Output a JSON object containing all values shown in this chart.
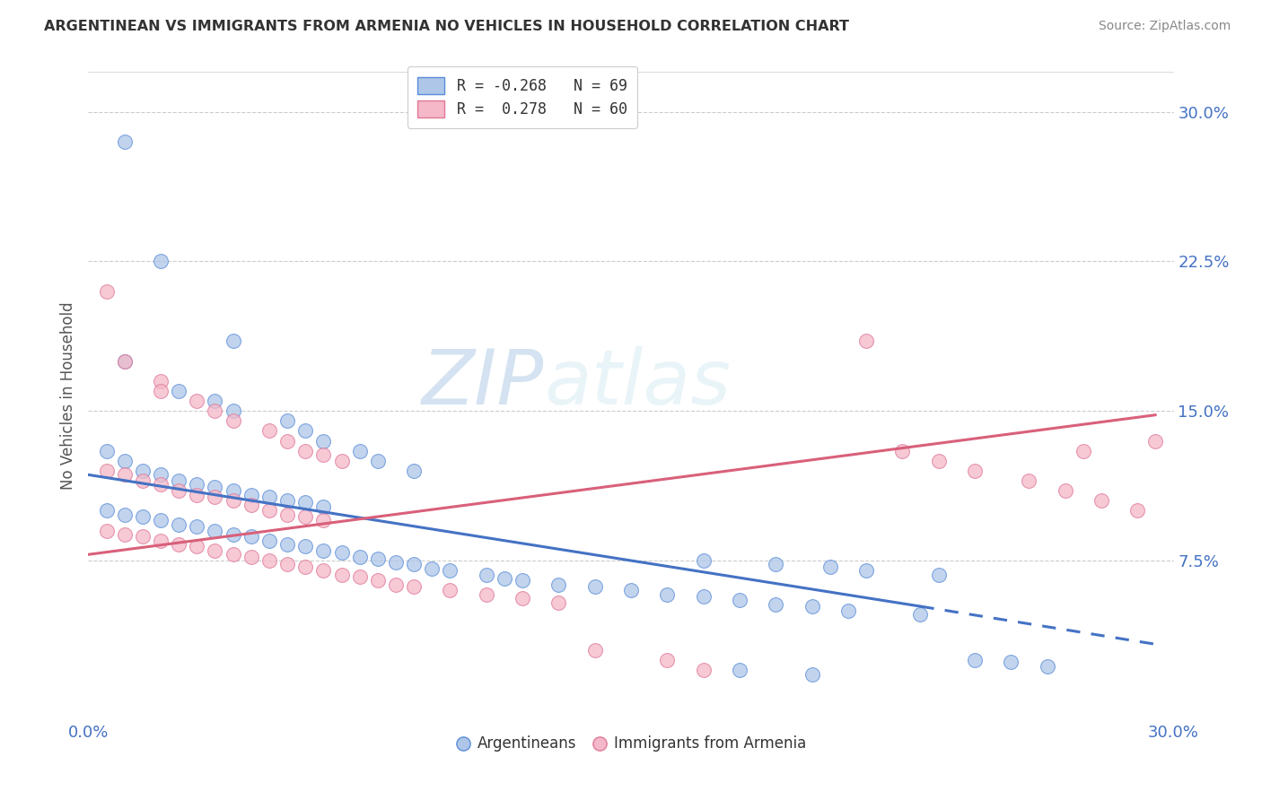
{
  "title": "ARGENTINEAN VS IMMIGRANTS FROM ARMENIA NO VEHICLES IN HOUSEHOLD CORRELATION CHART",
  "source": "Source: ZipAtlas.com",
  "ylabel_label": "No Vehicles in Household",
  "yticks": [
    0.075,
    0.15,
    0.225,
    0.3
  ],
  "ytick_labels": [
    "7.5%",
    "15.0%",
    "22.5%",
    "30.0%"
  ],
  "xlim": [
    0.0,
    0.3
  ],
  "ylim": [
    -0.005,
    0.32
  ],
  "watermark_zip": "ZIP",
  "watermark_atlas": "atlas",
  "legend_line1": "R = -0.268   N = 69",
  "legend_line2": "R =  0.278   N = 60",
  "blue_color": "#aec6e8",
  "pink_color": "#f4b8c8",
  "blue_edge_color": "#5b8dd9",
  "pink_edge_color": "#e07898",
  "blue_line_color": "#4472c4",
  "pink_line_color": "#d9607a",
  "blue_scatter": [
    [
      0.01,
      0.285
    ],
    [
      0.02,
      0.225
    ],
    [
      0.04,
      0.185
    ],
    [
      0.01,
      0.175
    ],
    [
      0.025,
      0.16
    ],
    [
      0.035,
      0.155
    ],
    [
      0.04,
      0.15
    ],
    [
      0.055,
      0.145
    ],
    [
      0.06,
      0.14
    ],
    [
      0.065,
      0.135
    ],
    [
      0.075,
      0.13
    ],
    [
      0.08,
      0.125
    ],
    [
      0.09,
      0.12
    ],
    [
      0.005,
      0.13
    ],
    [
      0.01,
      0.125
    ],
    [
      0.015,
      0.12
    ],
    [
      0.02,
      0.118
    ],
    [
      0.025,
      0.115
    ],
    [
      0.03,
      0.113
    ],
    [
      0.035,
      0.112
    ],
    [
      0.04,
      0.11
    ],
    [
      0.045,
      0.108
    ],
    [
      0.05,
      0.107
    ],
    [
      0.055,
      0.105
    ],
    [
      0.06,
      0.104
    ],
    [
      0.065,
      0.102
    ],
    [
      0.005,
      0.1
    ],
    [
      0.01,
      0.098
    ],
    [
      0.015,
      0.097
    ],
    [
      0.02,
      0.095
    ],
    [
      0.025,
      0.093
    ],
    [
      0.03,
      0.092
    ],
    [
      0.035,
      0.09
    ],
    [
      0.04,
      0.088
    ],
    [
      0.045,
      0.087
    ],
    [
      0.05,
      0.085
    ],
    [
      0.055,
      0.083
    ],
    [
      0.06,
      0.082
    ],
    [
      0.065,
      0.08
    ],
    [
      0.07,
      0.079
    ],
    [
      0.075,
      0.077
    ],
    [
      0.08,
      0.076
    ],
    [
      0.085,
      0.074
    ],
    [
      0.09,
      0.073
    ],
    [
      0.095,
      0.071
    ],
    [
      0.1,
      0.07
    ],
    [
      0.11,
      0.068
    ],
    [
      0.115,
      0.066
    ],
    [
      0.12,
      0.065
    ],
    [
      0.13,
      0.063
    ],
    [
      0.14,
      0.062
    ],
    [
      0.15,
      0.06
    ],
    [
      0.16,
      0.058
    ],
    [
      0.17,
      0.057
    ],
    [
      0.18,
      0.055
    ],
    [
      0.19,
      0.053
    ],
    [
      0.2,
      0.052
    ],
    [
      0.21,
      0.05
    ],
    [
      0.23,
      0.048
    ],
    [
      0.17,
      0.075
    ],
    [
      0.19,
      0.073
    ],
    [
      0.205,
      0.072
    ],
    [
      0.215,
      0.07
    ],
    [
      0.235,
      0.068
    ],
    [
      0.245,
      0.025
    ],
    [
      0.255,
      0.024
    ],
    [
      0.265,
      0.022
    ],
    [
      0.18,
      0.02
    ],
    [
      0.2,
      0.018
    ]
  ],
  "pink_scatter": [
    [
      0.005,
      0.21
    ],
    [
      0.01,
      0.175
    ],
    [
      0.02,
      0.165
    ],
    [
      0.02,
      0.16
    ],
    [
      0.03,
      0.155
    ],
    [
      0.035,
      0.15
    ],
    [
      0.04,
      0.145
    ],
    [
      0.05,
      0.14
    ],
    [
      0.055,
      0.135
    ],
    [
      0.06,
      0.13
    ],
    [
      0.065,
      0.128
    ],
    [
      0.07,
      0.125
    ],
    [
      0.005,
      0.12
    ],
    [
      0.01,
      0.118
    ],
    [
      0.015,
      0.115
    ],
    [
      0.02,
      0.113
    ],
    [
      0.025,
      0.11
    ],
    [
      0.03,
      0.108
    ],
    [
      0.035,
      0.107
    ],
    [
      0.04,
      0.105
    ],
    [
      0.045,
      0.103
    ],
    [
      0.05,
      0.1
    ],
    [
      0.055,
      0.098
    ],
    [
      0.06,
      0.097
    ],
    [
      0.065,
      0.095
    ],
    [
      0.005,
      0.09
    ],
    [
      0.01,
      0.088
    ],
    [
      0.015,
      0.087
    ],
    [
      0.02,
      0.085
    ],
    [
      0.025,
      0.083
    ],
    [
      0.03,
      0.082
    ],
    [
      0.035,
      0.08
    ],
    [
      0.04,
      0.078
    ],
    [
      0.045,
      0.077
    ],
    [
      0.05,
      0.075
    ],
    [
      0.055,
      0.073
    ],
    [
      0.06,
      0.072
    ],
    [
      0.065,
      0.07
    ],
    [
      0.07,
      0.068
    ],
    [
      0.075,
      0.067
    ],
    [
      0.08,
      0.065
    ],
    [
      0.085,
      0.063
    ],
    [
      0.09,
      0.062
    ],
    [
      0.1,
      0.06
    ],
    [
      0.11,
      0.058
    ],
    [
      0.12,
      0.056
    ],
    [
      0.13,
      0.054
    ],
    [
      0.14,
      0.03
    ],
    [
      0.16,
      0.025
    ],
    [
      0.17,
      0.02
    ],
    [
      0.215,
      0.185
    ],
    [
      0.225,
      0.13
    ],
    [
      0.235,
      0.125
    ],
    [
      0.245,
      0.12
    ],
    [
      0.26,
      0.115
    ],
    [
      0.27,
      0.11
    ],
    [
      0.28,
      0.105
    ],
    [
      0.29,
      0.1
    ],
    [
      0.295,
      0.135
    ],
    [
      0.275,
      0.13
    ]
  ],
  "blue_trendline_solid": [
    [
      0.0,
      0.118
    ],
    [
      0.23,
      0.052
    ]
  ],
  "blue_trendline_dash": [
    [
      0.23,
      0.052
    ],
    [
      0.295,
      0.033
    ]
  ],
  "pink_trendline": [
    [
      0.0,
      0.078
    ],
    [
      0.295,
      0.148
    ]
  ],
  "background_color": "#ffffff",
  "grid_color": "#cccccc",
  "marker_size": 130
}
